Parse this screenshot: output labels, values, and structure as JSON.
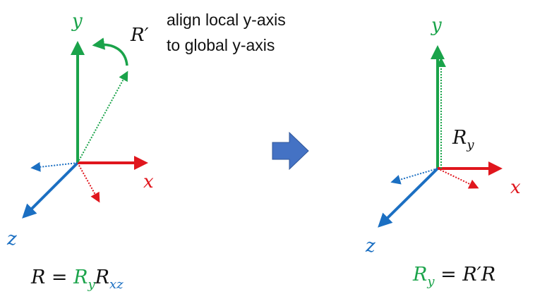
{
  "colors": {
    "green": "#1aa34a",
    "red": "#e0161d",
    "blue": "#1b6fc2",
    "black": "#111111",
    "arrow_fill": "#4472c4"
  },
  "left": {
    "label_y": "y",
    "label_x": "x",
    "label_z": "z",
    "label_rprime": "R′",
    "note_line1": "align local y-axis",
    "note_line2": "to global y-axis",
    "formula": {
      "lhs": "R",
      "eq": " = ",
      "r1": "R",
      "r1_sub": "y",
      "r2": "R",
      "r2_sub": "xz"
    }
  },
  "right": {
    "label_y": "y",
    "label_x": "x",
    "label_z": "z",
    "label_ry": "R",
    "label_ry_sub": "y",
    "formula": {
      "lhs": "R",
      "lhs_sub": "y",
      "eq": " = ",
      "rhs": "R′R"
    }
  },
  "center_arrow_icon": "block-arrow-right-icon"
}
